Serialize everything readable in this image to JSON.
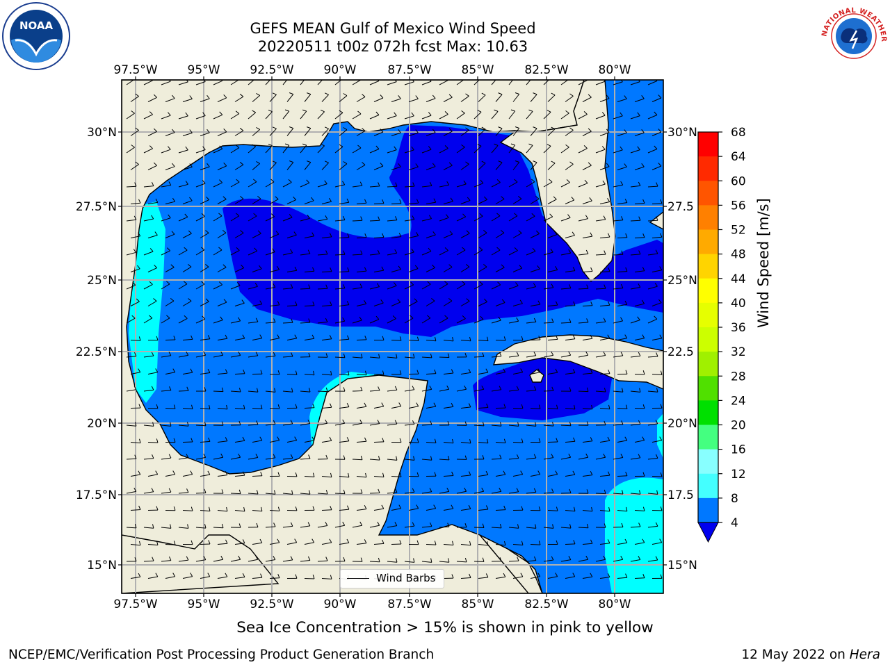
{
  "title_line1": "GEFS MEAN Gulf of Mexico Wind Speed",
  "title_line2": "20220511 t00z 072h fcst   Max: 10.63",
  "lon_labels": [
    "97.5°W",
    "95°W",
    "92.5°W",
    "90°W",
    "87.5°W",
    "85°W",
    "82.5°W",
    "80°W"
  ],
  "lat_labels_left": [
    "30°N",
    "27.5°N",
    "25°N",
    "22.5°N",
    "20°N",
    "17.5°N",
    "15°N"
  ],
  "lat_labels_right": [
    "30°N",
    "27.5",
    "25°N",
    "22.5",
    "20°N",
    "17.5",
    "15°N"
  ],
  "legend_label": "Wind Barbs",
  "colorbar": {
    "title": "Wind Speed [m/s]",
    "ticks": [
      "68",
      "64",
      "60",
      "56",
      "52",
      "48",
      "44",
      "40",
      "36",
      "32",
      "28",
      "24",
      "20",
      "16",
      "12",
      "8",
      "4"
    ],
    "colors": [
      "#ff0000",
      "#ff2a00",
      "#ff5500",
      "#ff8000",
      "#ffaa00",
      "#ffd400",
      "#ffff00",
      "#e6ff00",
      "#ccff00",
      "#a0f000",
      "#50e000",
      "#00e000",
      "#44ff80",
      "#88ffff",
      "#44ffff",
      "#00ffff",
      "#0078ff"
    ],
    "extend_color": "#0000ee"
  },
  "colors": {
    "land": "#efeddb",
    "wind_4_8": "#0078ff",
    "wind_lt_4": "#0000ee",
    "wind_8_12": "#00ffff",
    "grid": "#b0b0b0"
  },
  "subtitle": "Sea Ice Concentration > 15% is shown in pink to yellow",
  "credit": "NCEP/EMC/Verification Post Processing Product Generation Branch",
  "date_prefix": "12 May 2022 on ",
  "date_machine": "Hera",
  "logos": {
    "left": "NOAA",
    "right": "NATIONAL WEATHER SERVICE"
  }
}
